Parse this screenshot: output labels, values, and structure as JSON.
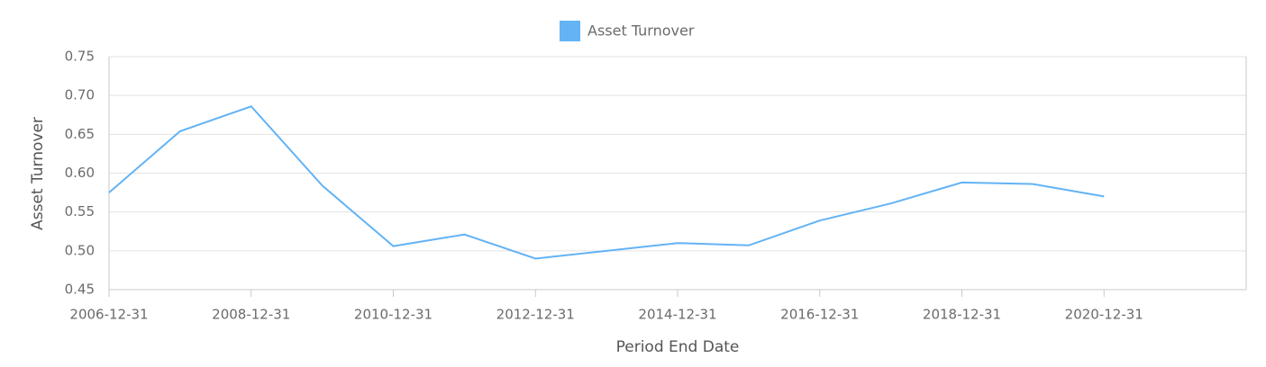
{
  "chart_data": {
    "type": "line",
    "legend": "top",
    "x_label": "Period End Date",
    "y_label": "Asset Turnover",
    "categories": [
      "2006-12-31",
      null,
      "2008-12-31",
      null,
      "2010-12-31",
      null,
      "2012-12-31",
      null,
      "2014-12-31",
      null,
      "2016-12-31",
      null,
      "2018-12-31",
      null,
      "2020-12-31"
    ],
    "series": [
      {
        "name": "Asset Turnover",
        "color": "#63b3f5",
        "values": [
          0.575,
          0.654,
          0.686,
          0.584,
          0.506,
          0.521,
          0.49,
          0.5,
          0.51,
          0.507,
          0.539,
          0.561,
          0.588,
          0.586,
          0.57
        ]
      }
    ],
    "ylim": [
      0.45,
      0.75
    ],
    "yticks": [
      {
        "value": 0.45,
        "label": "0.45"
      },
      {
        "value": 0.5,
        "label": "0.50"
      },
      {
        "value": 0.55,
        "label": "0.55"
      },
      {
        "value": 0.6,
        "label": "0.60"
      },
      {
        "value": 0.65,
        "label": "0.65"
      },
      {
        "value": 0.7,
        "label": "0.70"
      },
      {
        "value": 0.75,
        "label": "0.75"
      }
    ],
    "grid": true
  }
}
